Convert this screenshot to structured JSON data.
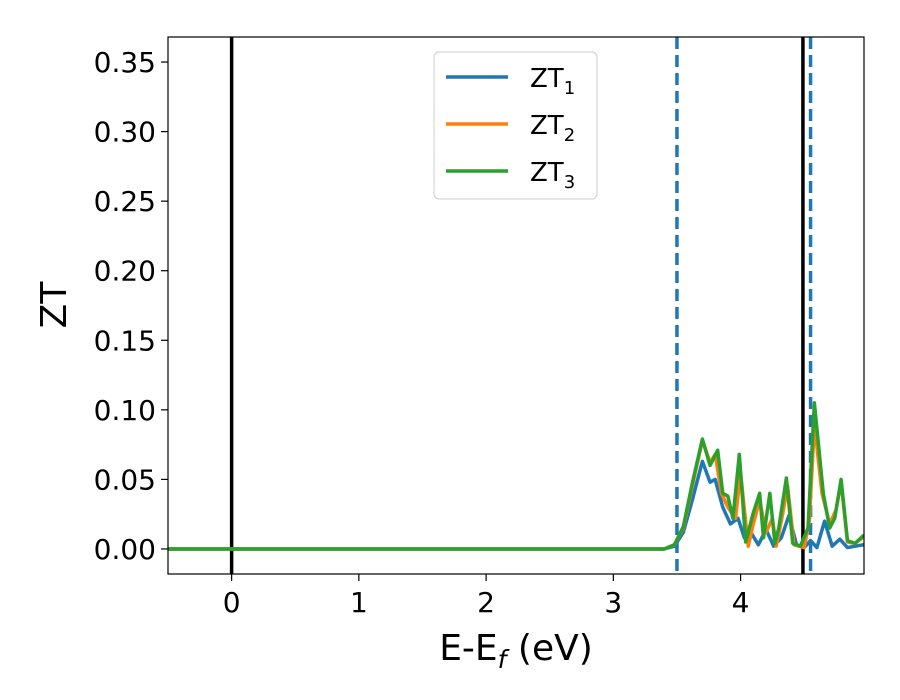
{
  "chart_data": {
    "type": "line",
    "xlabel": "E-E",
    "xlabel_sub": "f",
    "xlabel_unit": " (eV)",
    "ylabel": "ZT",
    "xlim": [
      -0.5,
      4.97
    ],
    "ylim": [
      -0.018,
      0.368
    ],
    "x_ticks": [
      0,
      1,
      2,
      3,
      4
    ],
    "x_tick_labels": [
      "0",
      "1",
      "2",
      "3",
      "4"
    ],
    "y_ticks": [
      0.0,
      0.05,
      0.1,
      0.15,
      0.2,
      0.25,
      0.3,
      0.35
    ],
    "y_tick_labels": [
      "0.00",
      "0.05",
      "0.10",
      "0.15",
      "0.20",
      "0.25",
      "0.30",
      "0.35"
    ],
    "legend_position": "top-center",
    "grid": false,
    "series": [
      {
        "name": "ZT",
        "name_sub": "1",
        "color": "#1f77b4",
        "points": [
          [
            -0.5,
            0
          ],
          [
            3.4,
            0
          ],
          [
            3.48,
            0.002
          ],
          [
            3.55,
            0.012
          ],
          [
            3.62,
            0.035
          ],
          [
            3.7,
            0.063
          ],
          [
            3.76,
            0.048
          ],
          [
            3.8,
            0.05
          ],
          [
            3.86,
            0.03
          ],
          [
            3.92,
            0.018
          ],
          [
            3.98,
            0.022
          ],
          [
            4.03,
            0.008
          ],
          [
            4.08,
            0.012
          ],
          [
            4.14,
            0.003
          ],
          [
            4.2,
            0.014
          ],
          [
            4.26,
            0.002
          ],
          [
            4.32,
            0.008
          ],
          [
            4.38,
            0.024
          ],
          [
            4.44,
            0.003
          ],
          [
            4.5,
            0.001
          ],
          [
            4.55,
            0.006
          ],
          [
            4.6,
            0.001
          ],
          [
            4.66,
            0.02
          ],
          [
            4.72,
            0.002
          ],
          [
            4.78,
            0.007
          ],
          [
            4.84,
            0.001
          ],
          [
            4.9,
            0.002
          ],
          [
            4.97,
            0.003
          ]
        ]
      },
      {
        "name": "ZT",
        "name_sub": "2",
        "color": "#ff7f0e",
        "points": [
          [
            -0.5,
            0
          ],
          [
            3.4,
            0
          ],
          [
            3.48,
            0.003
          ],
          [
            3.55,
            0.015
          ],
          [
            3.62,
            0.045
          ],
          [
            3.7,
            0.078
          ],
          [
            3.76,
            0.062
          ],
          [
            3.8,
            0.068
          ],
          [
            3.85,
            0.04
          ],
          [
            3.9,
            0.03
          ],
          [
            3.96,
            0.022
          ],
          [
            4.0,
            0.055
          ],
          [
            4.06,
            0.002
          ],
          [
            4.1,
            0.018
          ],
          [
            4.15,
            0.035
          ],
          [
            4.2,
            0.012
          ],
          [
            4.25,
            0.022
          ],
          [
            4.28,
            0.002
          ],
          [
            4.32,
            0.02
          ],
          [
            4.37,
            0.045
          ],
          [
            4.42,
            0.003
          ],
          [
            4.5,
            0.001
          ],
          [
            4.54,
            0.02
          ],
          [
            4.58,
            0.09
          ],
          [
            4.64,
            0.04
          ],
          [
            4.7,
            0.018
          ],
          [
            4.75,
            0.028
          ],
          [
            4.79,
            0.048
          ],
          [
            4.84,
            0.005
          ],
          [
            4.9,
            0.004
          ],
          [
            4.97,
            0.009
          ]
        ]
      },
      {
        "name": "ZT",
        "name_sub": "3",
        "color": "#2ca02c",
        "points": [
          [
            -0.5,
            0
          ],
          [
            3.4,
            0
          ],
          [
            3.48,
            0.003
          ],
          [
            3.55,
            0.016
          ],
          [
            3.62,
            0.047
          ],
          [
            3.7,
            0.079
          ],
          [
            3.76,
            0.06
          ],
          [
            3.82,
            0.071
          ],
          [
            3.86,
            0.04
          ],
          [
            3.9,
            0.038
          ],
          [
            3.94,
            0.022
          ],
          [
            3.99,
            0.068
          ],
          [
            4.04,
            0.005
          ],
          [
            4.1,
            0.026
          ],
          [
            4.15,
            0.04
          ],
          [
            4.18,
            0.008
          ],
          [
            4.23,
            0.04
          ],
          [
            4.27,
            0.004
          ],
          [
            4.3,
            0.015
          ],
          [
            4.36,
            0.051
          ],
          [
            4.41,
            0.004
          ],
          [
            4.47,
            0.002
          ],
          [
            4.53,
            0.015
          ],
          [
            4.58,
            0.105
          ],
          [
            4.65,
            0.04
          ],
          [
            4.7,
            0.015
          ],
          [
            4.74,
            0.022
          ],
          [
            4.79,
            0.05
          ],
          [
            4.84,
            0.006
          ],
          [
            4.9,
            0.004
          ],
          [
            4.97,
            0.01
          ]
        ]
      }
    ],
    "vlines": [
      {
        "x": 0.0,
        "color": "#000000",
        "style": "solid"
      },
      {
        "x": 4.49,
        "color": "#000000",
        "style": "solid"
      },
      {
        "x": 3.5,
        "color": "#1f77b4",
        "style": "dashed"
      },
      {
        "x": 4.55,
        "color": "#1f77b4",
        "style": "dashed"
      }
    ]
  }
}
